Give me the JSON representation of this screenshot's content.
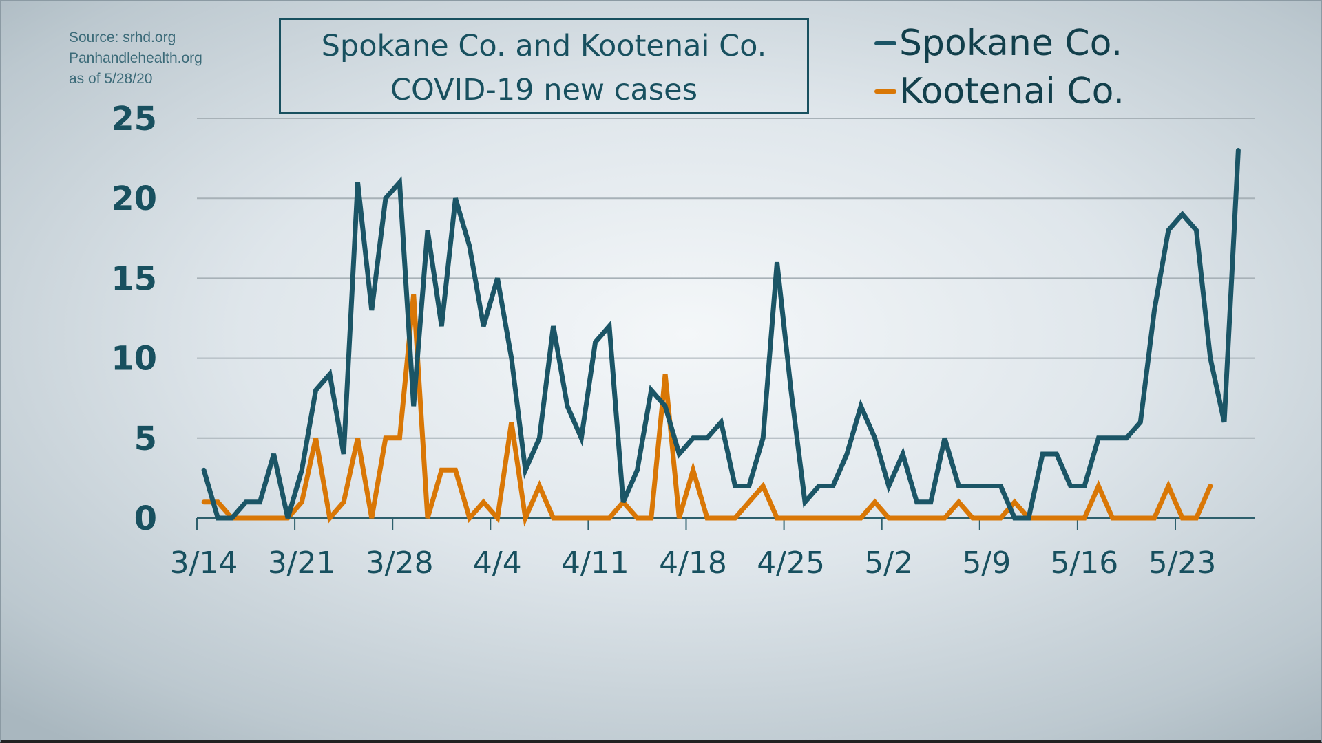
{
  "source": {
    "line1": "Source: srhd.org",
    "line2": "Panhandlehealth.org",
    "line3": "as of 5/28/20"
  },
  "title": {
    "line1": "Spokane Co. and Kootenai Co.",
    "line2": "COVID-19 new cases"
  },
  "legend": [
    {
      "label": "Spokane Co.",
      "color": "#1b5566"
    },
    {
      "label": "Kootenai Co.",
      "color": "#d97706"
    }
  ],
  "chart_data": {
    "type": "line",
    "title": "Spokane Co. and Kootenai Co. COVID-19 new cases",
    "xlabel": "",
    "ylabel": "",
    "ylim": [
      0,
      25
    ],
    "yticks": [
      0,
      5,
      10,
      15,
      20,
      25
    ],
    "xtick_labels": [
      "3/14",
      "3/21",
      "3/28",
      "4/4",
      "4/11",
      "4/18",
      "4/25",
      "5/2",
      "5/9",
      "5/16",
      "5/23"
    ],
    "grid": true,
    "legend_position": "top-right",
    "x_start": "3/14",
    "series": [
      {
        "name": "Spokane Co.",
        "color": "#1b5566",
        "values": [
          3,
          0,
          0,
          1,
          1,
          4,
          0,
          3,
          8,
          9,
          4,
          21,
          13,
          20,
          21,
          7,
          18,
          12,
          20,
          17,
          12,
          15,
          10,
          3,
          5,
          12,
          7,
          5,
          11,
          12,
          1,
          3,
          8,
          7,
          4,
          5,
          5,
          6,
          2,
          2,
          5,
          16,
          8,
          1,
          2,
          2,
          4,
          7,
          5,
          2,
          4,
          1,
          1,
          5,
          2,
          2,
          2,
          2,
          0,
          0,
          4,
          4,
          2,
          2,
          5,
          5,
          5,
          6,
          13,
          18,
          19,
          18,
          10,
          6,
          23
        ]
      },
      {
        "name": "Kootenai Co.",
        "color": "#d97706",
        "values": [
          1,
          1,
          0,
          0,
          0,
          0,
          0,
          1,
          5,
          0,
          1,
          5,
          0,
          5,
          5,
          14,
          0,
          3,
          3,
          0,
          1,
          0,
          6,
          0,
          2,
          0,
          0,
          0,
          0,
          0,
          1,
          0,
          0,
          9,
          0,
          3,
          0,
          0,
          0,
          1,
          2,
          0,
          0,
          0,
          0,
          0,
          0,
          0,
          1,
          0,
          0,
          0,
          0,
          0,
          1,
          0,
          0,
          0,
          1,
          0,
          0,
          0,
          0,
          0,
          2,
          0,
          0,
          0,
          0,
          2,
          0,
          0,
          2
        ]
      }
    ]
  }
}
